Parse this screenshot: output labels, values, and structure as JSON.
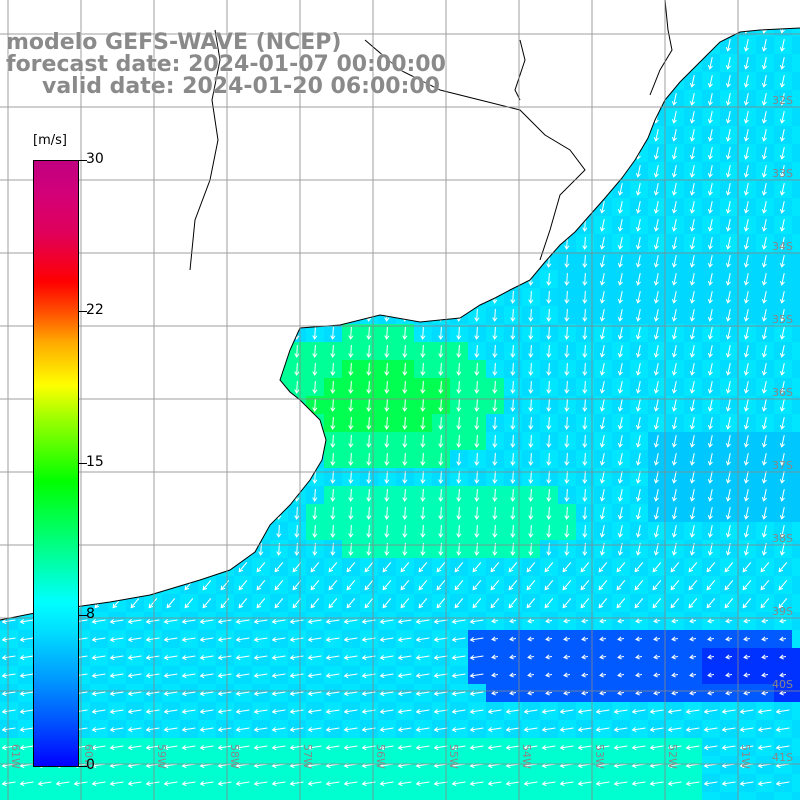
{
  "title": {
    "line1": "modelo GEFS-WAVE (NCEP)",
    "line2": "forecast date: 2024-01-07 00:00:00",
    "line3": "valid date: 2024-01-20 06:00:00"
  },
  "colorbar": {
    "unit": "[m/s]",
    "labels": [
      "30",
      "22",
      "15",
      "8",
      "0"
    ],
    "values": [
      30,
      22,
      15,
      8,
      0
    ],
    "colors": [
      "#0000ff",
      "#0096ff",
      "#00ffff",
      "#00ff00",
      "#ffff00",
      "#ff0000",
      "#c00080"
    ]
  },
  "map": {
    "lon_labels": [
      "61W",
      "60W",
      "59W",
      "58W",
      "57W",
      "56W",
      "55W",
      "54W",
      "53W",
      "52W",
      "51W"
    ],
    "lat_labels": [
      "32S",
      "33S",
      "34S",
      "35S",
      "36S",
      "37S",
      "38S",
      "39S",
      "40S",
      "41S"
    ],
    "land_color": "#ffffff",
    "coast_color": "#000000",
    "grid_color": "#808080",
    "arrow_color": "#ffffff"
  }
}
